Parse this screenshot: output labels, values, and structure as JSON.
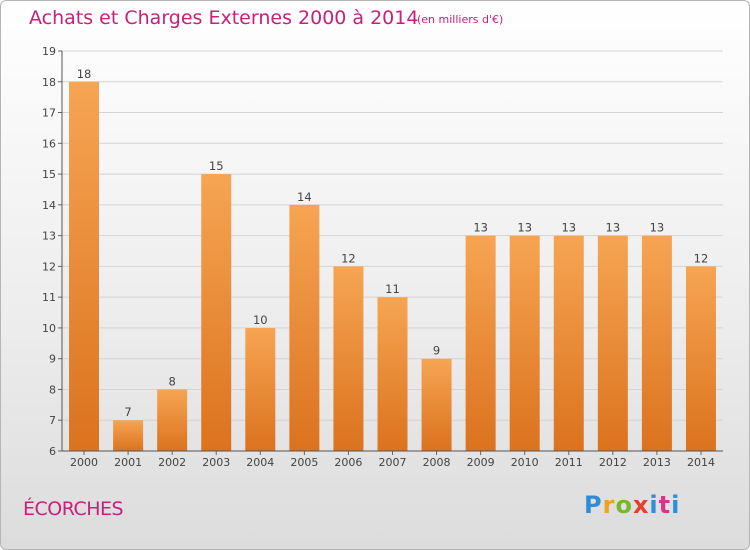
{
  "title": "Achats et Charges Externes 2000 à 2014",
  "unit_note": "(en milliers d'€)",
  "commune": "ÉCORCHES",
  "logo": [
    "P",
    "r",
    "o",
    "x",
    "i",
    "t",
    "i"
  ],
  "colors": {
    "accent": "#c8207a",
    "bar_top": "#f6a553",
    "bar_bottom": "#db721e"
  },
  "chart_data": {
    "type": "bar",
    "title": "Achats et Charges Externes 2000 à 2014",
    "categories": [
      "2000",
      "2001",
      "2002",
      "2003",
      "2004",
      "2005",
      "2006",
      "2007",
      "2008",
      "2009",
      "2010",
      "2011",
      "2012",
      "2013",
      "2014"
    ],
    "values": [
      18,
      7,
      8,
      15,
      10,
      14,
      12,
      11,
      9,
      13,
      13,
      13,
      13,
      13,
      12
    ],
    "ylim": [
      6,
      19
    ],
    "yticks": [
      6,
      7,
      8,
      9,
      10,
      11,
      12,
      13,
      14,
      15,
      16,
      17,
      18,
      19
    ],
    "grid": "horizontal",
    "data_labels": true
  }
}
